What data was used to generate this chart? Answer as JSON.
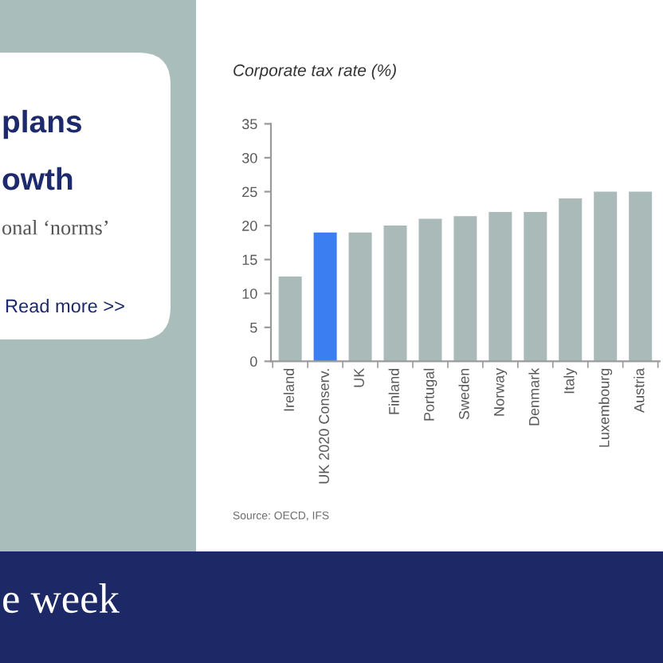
{
  "chart_data": {
    "type": "bar",
    "title": "Corporate tax rate (%)",
    "categories": [
      "Ireland",
      "UK 2020 Conserv.",
      "UK",
      "Finland",
      "Portugal",
      "Sweden",
      "Norway",
      "Denmark",
      "Italy",
      "Luxembourg",
      "Austria"
    ],
    "values": [
      12.5,
      19,
      19,
      20,
      21,
      21.4,
      22,
      22,
      24,
      25,
      25
    ],
    "colors": [
      "#aabab9",
      "#3a7ef2",
      "#aabab9",
      "#aabab9",
      "#aabab9",
      "#aabab9",
      "#aabab9",
      "#aabab9",
      "#aabab9",
      "#aabab9",
      "#aabab9"
    ],
    "ylim": [
      0,
      35
    ],
    "yticks": [
      0,
      5,
      10,
      15,
      20,
      25,
      30,
      35
    ],
    "grid": false,
    "annotations": [
      "Source: OECD, IFS",
      "plans",
      "owth",
      "onal ‘norms’",
      "Read more >>",
      "e week"
    ]
  }
}
